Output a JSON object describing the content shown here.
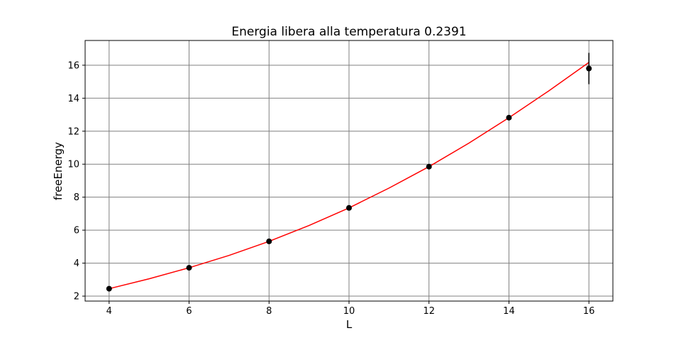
{
  "chart_data": {
    "type": "scatter",
    "title": "Energia libera alla temperatura 0.2391",
    "xlabel": "L",
    "ylabel": "freeEnergy",
    "xlim": [
      3.4,
      16.6
    ],
    "ylim": [
      1.7,
      17.5
    ],
    "xticks": [
      4,
      6,
      8,
      10,
      12,
      14,
      16
    ],
    "yticks": [
      2,
      4,
      6,
      8,
      10,
      12,
      14,
      16
    ],
    "grid": true,
    "series": [
      {
        "kind": "points-with-errorbars",
        "color": "#000000",
        "x": [
          4,
          6,
          8,
          10,
          12,
          14,
          16
        ],
        "y": [
          2.45,
          3.72,
          5.32,
          7.35,
          9.85,
          12.82,
          15.8
        ],
        "yerr": [
          0.02,
          0.03,
          0.04,
          0.05,
          0.06,
          0.08,
          0.95
        ]
      },
      {
        "kind": "fit-line",
        "color": "#ff0000",
        "x": [
          4,
          5,
          6,
          7,
          8,
          9,
          10,
          11,
          12,
          13,
          14,
          15,
          16
        ],
        "y": [
          2.45,
          3.05,
          3.72,
          4.47,
          5.32,
          6.28,
          7.35,
          8.55,
          9.85,
          11.28,
          12.82,
          14.45,
          16.17
        ]
      }
    ]
  }
}
